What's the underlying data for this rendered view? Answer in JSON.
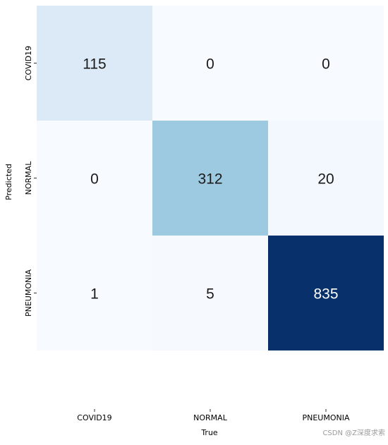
{
  "chart_data": {
    "type": "heatmap",
    "title": "",
    "xlabel": "True",
    "ylabel": "Predicted",
    "x_categories": [
      "COVID19",
      "NORMAL",
      "PNEUMONIA"
    ],
    "y_categories": [
      "COVID19",
      "NORMAL",
      "PNEUMONIA"
    ],
    "values": [
      [
        115,
        0,
        0
      ],
      [
        0,
        312,
        20
      ],
      [
        1,
        5,
        835
      ]
    ],
    "colormap": "Blues",
    "value_range": [
      0,
      835
    ],
    "grid": false,
    "colorbar": false
  },
  "watermark": "CSDN @Z深度求索"
}
